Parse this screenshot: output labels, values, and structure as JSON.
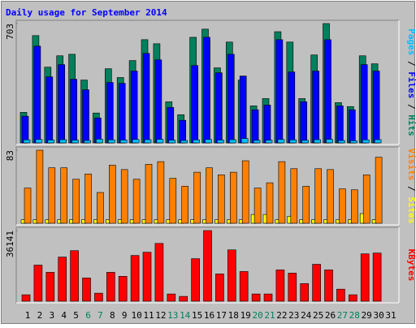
{
  "chart_data": {
    "type": "bar",
    "title": "Daily usage for September 2014",
    "categories": [
      "1",
      "2",
      "3",
      "4",
      "5",
      "6",
      "7",
      "8",
      "9",
      "10",
      "11",
      "12",
      "13",
      "14",
      "15",
      "16",
      "17",
      "18",
      "19",
      "20",
      "21",
      "22",
      "23",
      "24",
      "25",
      "26",
      "27",
      "28",
      "29",
      "30",
      "31"
    ],
    "label_colors": [
      "#000000",
      "#000000",
      "#000000",
      "#000000",
      "#000000",
      "#00805c",
      "#00805c",
      "#000000",
      "#000000",
      "#000000",
      "#000000",
      "#000000",
      "#00805c",
      "#00805c",
      "#000000",
      "#000000",
      "#000000",
      "#000000",
      "#000000",
      "#00805c",
      "#00805c",
      "#000000",
      "#000000",
      "#000000",
      "#000000",
      "#000000",
      "#00805c",
      "#00805c",
      "#000000",
      "#000000",
      "#000000"
    ],
    "panels": [
      {
        "ylim": [
          0,
          703
        ],
        "yticks": [
          703
        ],
        "series": [
          {
            "name": "Hits",
            "color": "#00805c",
            "values": [
              180,
              632,
              446,
              513,
              522,
              370,
              176,
              437,
              385,
              485,
              608,
              584,
              242,
              166,
              622,
              670,
              442,
              594,
              370,
              218,
              261,
              655,
              594,
              261,
              518,
              703,
              237,
              214,
              513,
              466,
              0
            ]
          },
          {
            "name": "Files",
            "color": "#0000ff",
            "values": [
              157,
              570,
              389,
              461,
              375,
              313,
              147,
              356,
              351,
              423,
              527,
              489,
              209,
              133,
              456,
              622,
              413,
              522,
              394,
              195,
              223,
              608,
              418,
              242,
              423,
              608,
              218,
              195,
              461,
              423,
              0
            ]
          },
          {
            "name": "Pages",
            "color": "#00c0ff",
            "values": [
              18,
              20,
              17,
              19,
              16,
              14,
              22,
              18,
              17,
              20,
              19,
              21,
              16,
              14,
              18,
              20,
              17,
              19,
              26,
              15,
              16,
              20,
              18,
              15,
              19,
              21,
              14,
              13,
              18,
              19,
              0
            ]
          }
        ]
      },
      {
        "ylim": [
          0,
          83
        ],
        "yticks": [
          83
        ],
        "series": [
          {
            "name": "Sites",
            "color": "#ffff00",
            "values": [
              4,
              4,
              4,
              4,
              4,
              4,
              4,
              4,
              4,
              4,
              4,
              4,
              4,
              4,
              4,
              4,
              4,
              4,
              4,
              10,
              10,
              4,
              8,
              4,
              4,
              4,
              4,
              4,
              11,
              4,
              0
            ]
          },
          {
            "name": "Visits",
            "color": "#ff8000",
            "values": [
              40,
              83,
              63,
              63,
              50,
              56,
              35,
              66,
              61,
              50,
              67,
              70,
              51,
              42,
              58,
              63,
              55,
              58,
              71,
              40,
              46,
              70,
              62,
              42,
              62,
              61,
              39,
              38,
              55,
              75,
              0
            ]
          }
        ]
      },
      {
        "ylim": [
          0,
          36141
        ],
        "yticks": [
          36141
        ],
        "series": [
          {
            "name": "KBytes",
            "color": "#ff0000",
            "values": [
              3290,
              18480,
              14780,
              22580,
              25870,
              11900,
              4110,
              14780,
              12730,
              23400,
              25050,
              29570,
              3700,
              2460,
              21770,
              36141,
              13960,
              26280,
              15190,
              3700,
              3700,
              16020,
              14370,
              9030,
              18890,
              16020,
              6160,
              3290,
              24230,
              24640,
              0
            ]
          }
        ]
      }
    ]
  }
}
